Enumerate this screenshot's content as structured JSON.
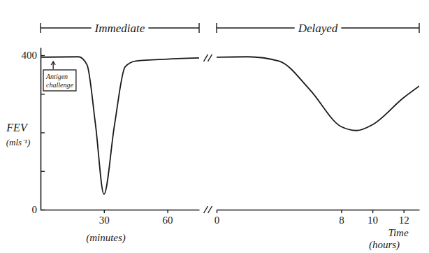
{
  "chart_data": [
    {
      "type": "line",
      "phase": "Immediate",
      "y_label": "FEV",
      "y_unit": "(mls⁻¹)",
      "x_label": "(minutes)",
      "x": [
        0,
        18,
        22,
        26,
        30,
        35,
        40,
        45,
        60,
        75
      ],
      "values": [
        395,
        396,
        375,
        220,
        40,
        220,
        370,
        385,
        390,
        393
      ],
      "xlim": [
        0,
        75
      ],
      "xticks": [
        30,
        60
      ],
      "ylim": [
        0,
        420
      ],
      "yticks": [
        0,
        {
          "value": 100,
          "label": null
        },
        {
          "value": 200,
          "label": null
        },
        {
          "value": 300,
          "label": null
        },
        400
      ],
      "annotation": {
        "lines": [
          "Antigen",
          "challenge"
        ],
        "x": 6
      }
    },
    {
      "type": "line",
      "phase": "Delayed",
      "x_label": "Time",
      "x_unit": "(hours)",
      "x": [
        0,
        2,
        4,
        6,
        8,
        9,
        10,
        12,
        13
      ],
      "values": [
        395,
        396,
        385,
        310,
        215,
        205,
        220,
        290,
        320
      ],
      "xlim": [
        0,
        13
      ],
      "xticks": [
        0,
        8,
        10,
        12
      ],
      "ylim": [
        0,
        420
      ],
      "tick_labels": "x"
    }
  ]
}
